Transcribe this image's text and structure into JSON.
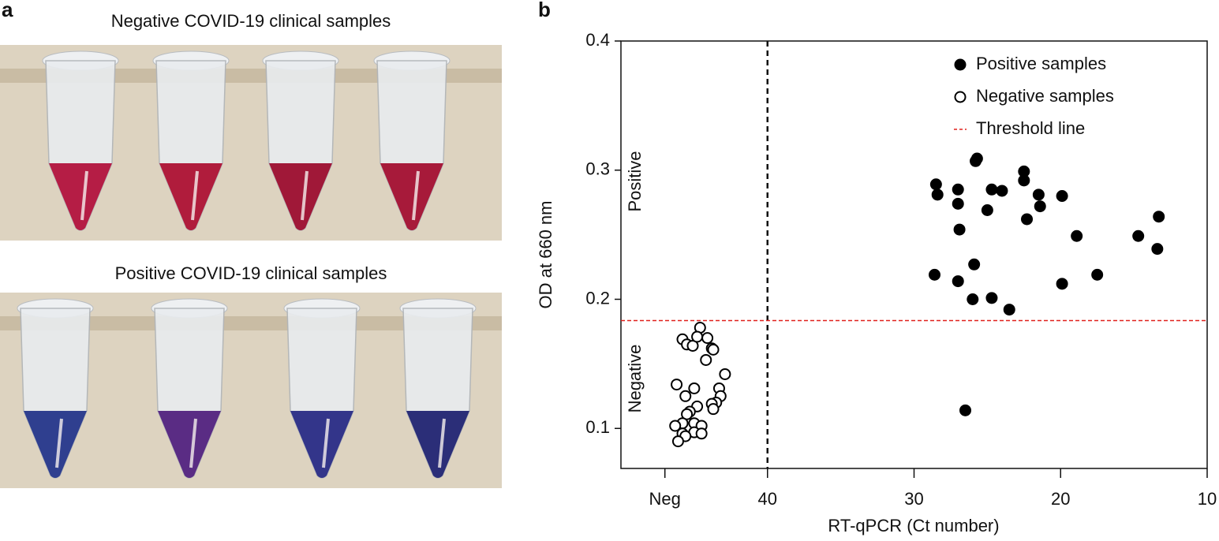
{
  "panels": {
    "a": {
      "label": "a",
      "captions": [
        "Negative COVID-19 clinical samples",
        "Positive COVID-19 clinical samples"
      ]
    },
    "b": {
      "label": "b"
    }
  },
  "chart_data": {
    "type": "scatter",
    "x_label": "RT-qPCR (Ct number)",
    "y_label": "OD at 660 nm",
    "annotations": [
      "Positive",
      "Negative"
    ],
    "xlim": [
      50,
      10
    ],
    "xticks": [
      {
        "value": 47,
        "label": "Neg"
      },
      40,
      30,
      20,
      10
    ],
    "ylim": [
      0.069,
      0.4
    ],
    "yticks": [
      0.1,
      0.2,
      0.3,
      0.4
    ],
    "cutoff_x": 40,
    "threshold": {
      "name": "Threshold line",
      "value": 0.1835,
      "color": "#e0201c"
    },
    "legend": "upper right",
    "series": [
      {
        "name": "Positive samples",
        "color": "#000000",
        "filled": true,
        "x": [
          28.5,
          28.4,
          27.0,
          27.0,
          26.9,
          28.6,
          27.0,
          25.8,
          25.7,
          25.9,
          26.0,
          24.7,
          25.0,
          24.0,
          24.7,
          23.5,
          26.5,
          22.5,
          22.5,
          21.5,
          21.4,
          22.3,
          19.9,
          18.9,
          19.9,
          17.5,
          14.7,
          13.3,
          13.4
        ],
        "values": [
          0.289,
          0.281,
          0.285,
          0.274,
          0.254,
          0.219,
          0.214,
          0.307,
          0.309,
          0.227,
          0.2,
          0.285,
          0.269,
          0.284,
          0.201,
          0.192,
          0.114,
          0.299,
          0.292,
          0.281,
          0.272,
          0.262,
          0.28,
          0.249,
          0.212,
          0.219,
          0.249,
          0.264,
          0.239
        ]
      },
      {
        "name": "Negative samples",
        "color": "#000000",
        "filled": false,
        "x": [
          44.6,
          45.8,
          45.5,
          45.1,
          44.8,
          44.1,
          43.8,
          43.7,
          44.2,
          42.9,
          46.2,
          45.0,
          43.3,
          45.6,
          43.2,
          43.5,
          43.8,
          43.7,
          44.8,
          45.3,
          45.5,
          45.0,
          45.8,
          46.3,
          44.5,
          45.8,
          45.0,
          44.5,
          45.6,
          46.1
        ],
        "values": [
          0.178,
          0.169,
          0.165,
          0.164,
          0.171,
          0.17,
          0.162,
          0.161,
          0.153,
          0.142,
          0.134,
          0.131,
          0.131,
          0.125,
          0.125,
          0.12,
          0.119,
          0.115,
          0.117,
          0.113,
          0.111,
          0.104,
          0.104,
          0.102,
          0.102,
          0.096,
          0.097,
          0.096,
          0.094,
          0.09
        ]
      }
    ]
  }
}
